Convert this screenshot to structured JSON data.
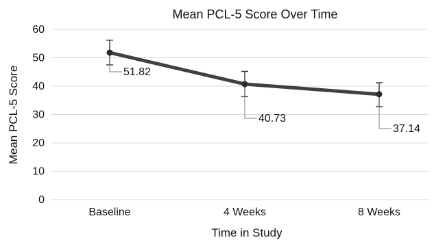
{
  "chart_data": {
    "type": "line",
    "title": "Mean PCL-5 Score Over Time",
    "xlabel": "Time in Study",
    "ylabel": "Mean PCL-5 Score",
    "categories": [
      "Baseline",
      "4 Weeks",
      "8 Weeks"
    ],
    "series": [
      {
        "values": [
          51.82,
          40.73,
          37.14
        ],
        "error_low": [
          47.5,
          36.3,
          32.8
        ],
        "error_high": [
          56.2,
          45.2,
          41.2
        ],
        "data_labels": [
          "51.82",
          "40.73",
          "37.14"
        ]
      }
    ],
    "ylim": [
      0,
      60
    ],
    "yticks": [
      "0",
      "10",
      "20",
      "30",
      "40",
      "50",
      "60"
    ],
    "grid": true,
    "legend": "none",
    "colors": {
      "line": "#404040",
      "marker": "#2b2b2b",
      "grid": "#d9d9d9",
      "error_bar": "#404040",
      "leader": "#7f7f7f"
    }
  }
}
